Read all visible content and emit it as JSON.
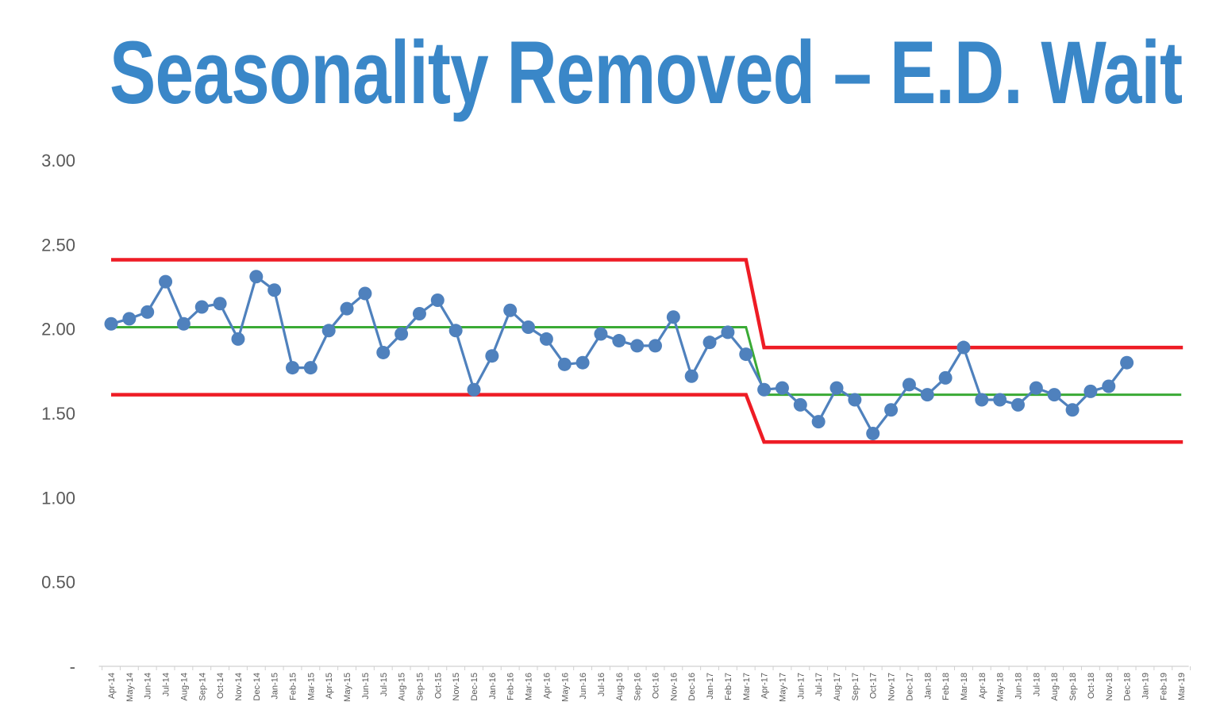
{
  "chart_data": {
    "type": "line",
    "title": "Seasonality Removed – E.D. Wait",
    "xlabel": "",
    "ylabel": "",
    "ylim": [
      0,
      3.0
    ],
    "y_tick_labels": [
      "-",
      "0.50",
      "1.00",
      "1.50",
      "2.00",
      "2.50",
      "3.00"
    ],
    "y_tick_values": [
      0,
      0.5,
      1.0,
      1.5,
      2.0,
      2.5,
      3.0
    ],
    "grid": false,
    "categories": [
      "Apr-14",
      "May-14",
      "Jun-14",
      "Jul-14",
      "Aug-14",
      "Sep-14",
      "Oct-14",
      "Nov-14",
      "Dec-14",
      "Jan-15",
      "Feb-15",
      "Mar-15",
      "Apr-15",
      "May-15",
      "Jun-15",
      "Jul-15",
      "Aug-15",
      "Sep-15",
      "Oct-15",
      "Nov-15",
      "Dec-15",
      "Jan-16",
      "Feb-16",
      "Mar-16",
      "Apr-16",
      "May-16",
      "Jun-16",
      "Jul-16",
      "Aug-16",
      "Sep-16",
      "Oct-16",
      "Nov-16",
      "Dec-16",
      "Jan-17",
      "Feb-17",
      "Mar-17",
      "Apr-17",
      "May-17",
      "Jun-17",
      "Jul-17",
      "Aug-17",
      "Sep-17",
      "Oct-17",
      "Nov-17",
      "Dec-17",
      "Jan-18",
      "Feb-18",
      "Mar-18",
      "Apr-18",
      "May-18",
      "Jun-18",
      "Jul-18",
      "Aug-18",
      "Sep-18",
      "Oct-18",
      "Nov-18",
      "Dec-18",
      "Jan-19",
      "Feb-19",
      "Mar-19"
    ],
    "series": [
      {
        "name": "",
        "role": "data",
        "color": "#4f81bd",
        "values": [
          2.03,
          2.06,
          2.1,
          2.28,
          2.03,
          2.13,
          2.15,
          1.94,
          2.31,
          2.23,
          1.77,
          1.77,
          1.99,
          2.12,
          2.21,
          1.86,
          1.97,
          2.09,
          2.17,
          1.99,
          1.64,
          1.84,
          2.11,
          2.01,
          1.94,
          1.79,
          1.8,
          1.97,
          1.93,
          1.9,
          1.9,
          2.07,
          1.72,
          1.92,
          1.98,
          1.85,
          1.64,
          1.65,
          1.55,
          1.45,
          1.65,
          1.58,
          1.38,
          1.52,
          1.67,
          1.61,
          1.71,
          1.89,
          1.58,
          1.58,
          1.55,
          1.65,
          1.61,
          1.52,
          1.63,
          1.66,
          1.8,
          null,
          null,
          null
        ]
      },
      {
        "name": "",
        "role": "average",
        "color": "#3aaa35",
        "values": [
          2.01,
          2.01,
          2.01,
          2.01,
          2.01,
          2.01,
          2.01,
          2.01,
          2.01,
          2.01,
          2.01,
          2.01,
          2.01,
          2.01,
          2.01,
          2.01,
          2.01,
          2.01,
          2.01,
          2.01,
          2.01,
          2.01,
          2.01,
          2.01,
          2.01,
          2.01,
          2.01,
          2.01,
          2.01,
          2.01,
          2.01,
          2.01,
          2.01,
          2.01,
          2.01,
          2.01,
          1.61,
          1.61,
          1.61,
          1.61,
          1.61,
          1.61,
          1.61,
          1.61,
          1.61,
          1.61,
          1.61,
          1.61,
          1.61,
          1.61,
          1.61,
          1.61,
          1.61,
          1.61,
          1.61,
          1.61,
          1.61,
          1.61,
          1.61,
          1.61
        ]
      },
      {
        "name": "",
        "role": "upper-limit",
        "color": "#ee1c25",
        "values": [
          2.41,
          2.41,
          2.41,
          2.41,
          2.41,
          2.41,
          2.41,
          2.41,
          2.41,
          2.41,
          2.41,
          2.41,
          2.41,
          2.41,
          2.41,
          2.41,
          2.41,
          2.41,
          2.41,
          2.41,
          2.41,
          2.41,
          2.41,
          2.41,
          2.41,
          2.41,
          2.41,
          2.41,
          2.41,
          2.41,
          2.41,
          2.41,
          2.41,
          2.41,
          2.41,
          2.41,
          1.89,
          1.89,
          1.89,
          1.89,
          1.89,
          1.89,
          1.89,
          1.89,
          1.89,
          1.89,
          1.89,
          1.89,
          1.89,
          1.89,
          1.89,
          1.89,
          1.89,
          1.89,
          1.89,
          1.89,
          1.89,
          1.89,
          1.89,
          1.89
        ]
      },
      {
        "name": "",
        "role": "lower-limit",
        "color": "#ee1c25",
        "values": [
          1.61,
          1.61,
          1.61,
          1.61,
          1.61,
          1.61,
          1.61,
          1.61,
          1.61,
          1.61,
          1.61,
          1.61,
          1.61,
          1.61,
          1.61,
          1.61,
          1.61,
          1.61,
          1.61,
          1.61,
          1.61,
          1.61,
          1.61,
          1.61,
          1.61,
          1.61,
          1.61,
          1.61,
          1.61,
          1.61,
          1.61,
          1.61,
          1.61,
          1.61,
          1.61,
          1.61,
          1.33,
          1.33,
          1.33,
          1.33,
          1.33,
          1.33,
          1.33,
          1.33,
          1.33,
          1.33,
          1.33,
          1.33,
          1.33,
          1.33,
          1.33,
          1.33,
          1.33,
          1.33,
          1.33,
          1.33,
          1.33,
          1.33,
          1.33,
          1.33
        ]
      }
    ]
  }
}
